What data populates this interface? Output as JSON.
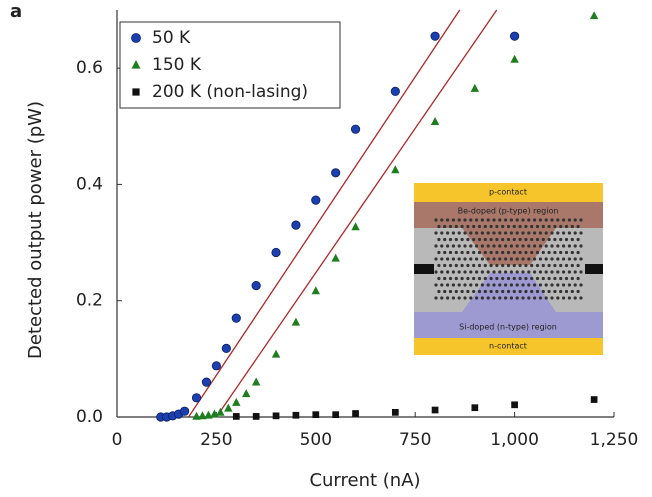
{
  "chart_data": {
    "type": "scatter",
    "panel_label": "a",
    "x_label": "Current (nA)",
    "y_label": "Detected output power (pW)",
    "xlim": [
      0,
      1250
    ],
    "ylim": [
      0,
      0.7
    ],
    "xticks": [
      0,
      250,
      500,
      750,
      {
        "value": 1000,
        "label": "1,000"
      },
      {
        "value": 1250,
        "label": "1,250"
      }
    ],
    "yticks": [
      {
        "value": 0,
        "label": "0.0"
      },
      0.2,
      0.4,
      0.6
    ],
    "legend": "top-left",
    "series": [
      {
        "name": "50 K",
        "color": "#1c3fb0",
        "marker": "circle",
        "x": [
          110,
          125,
          140,
          155,
          170,
          200,
          225,
          250,
          275,
          300,
          350,
          400,
          450,
          500,
          550,
          600,
          700,
          800,
          1000
        ],
        "values": [
          0,
          0,
          0.002,
          0.005,
          0.01,
          0.033,
          0.06,
          0.088,
          0.118,
          0.17,
          0.226,
          0.283,
          0.33,
          0.373,
          0.42,
          0.495,
          0.56,
          0.655,
          0.655
        ]
      },
      {
        "name": "150 K",
        "color": "#1e7d1e",
        "marker": "triangle",
        "x": [
          200,
          215,
          230,
          245,
          260,
          280,
          300,
          325,
          350,
          400,
          450,
          500,
          550,
          600,
          700,
          800,
          900,
          1000,
          1200
        ],
        "values": [
          0.001,
          0.002,
          0.003,
          0.005,
          0.008,
          0.015,
          0.025,
          0.04,
          0.06,
          0.108,
          0.163,
          0.217,
          0.273,
          0.327,
          0.425,
          0.508,
          0.565,
          0.615,
          0.69
        ]
      },
      {
        "name": "200 K (non-lasing)",
        "color": "#111111",
        "marker": "square",
        "x": [
          300,
          350,
          400,
          450,
          500,
          550,
          600,
          700,
          800,
          900,
          1000,
          1200
        ],
        "values": [
          0.001,
          0.001,
          0.002,
          0.003,
          0.004,
          0.004,
          0.006,
          0.008,
          0.012,
          0.016,
          0.021,
          0.03
        ]
      }
    ],
    "fit_lines": [
      {
        "color": "#b02828",
        "x": [
          180,
          862
        ],
        "values": [
          0,
          0.7
        ]
      },
      {
        "color": "#b02828",
        "x": [
          250,
          955
        ],
        "values": [
          0,
          0.7
        ]
      }
    ],
    "inset": {
      "labels": [
        "p-contact",
        "Be-doped (p-type) region",
        "Si-doped (n-type) region",
        "n-contact"
      ]
    }
  }
}
